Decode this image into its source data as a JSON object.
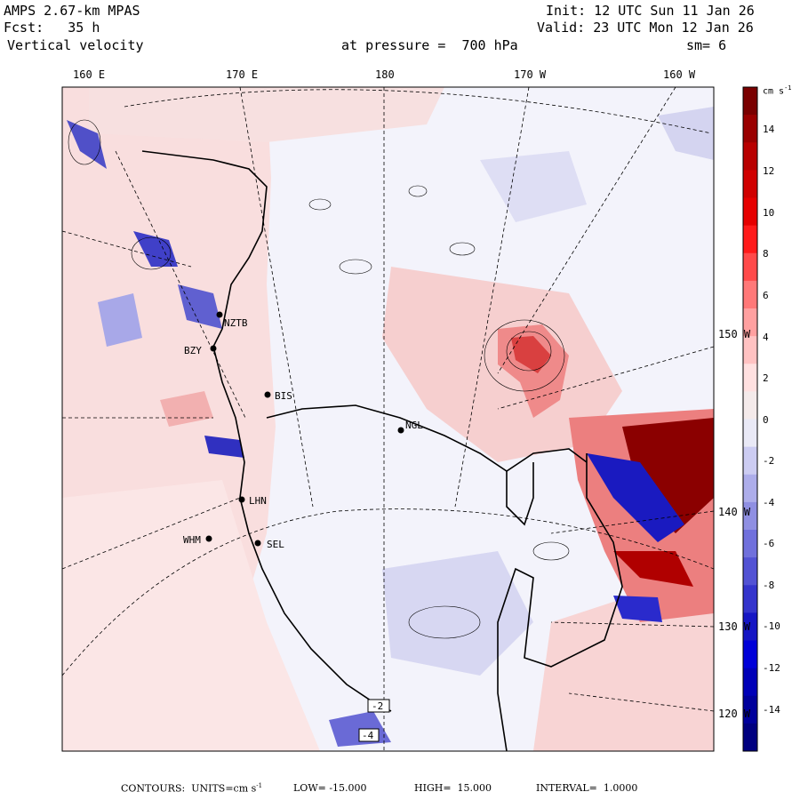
{
  "header": {
    "model": "AMPS 2.67-km MPAS",
    "init": "Init: 12 UTC Sun 11 Jan 26",
    "fcst": "Fcst:   35 h",
    "valid": "Valid: 23 UTC Mon 12 Jan 26",
    "field": "Vertical velocity",
    "pressure": "at pressure =  700 hPa",
    "smoothing": "sm= 6"
  },
  "longitude_labels": [
    "160 E",
    "170 E",
    "180",
    "170 W",
    "160 W"
  ],
  "latitude_labels": [
    "150 W",
    "140 W",
    "130 W",
    "120 W"
  ],
  "colorbar": {
    "units": "cm s",
    "units_exp": "-1",
    "ticks": [
      "14",
      "12",
      "10",
      "8",
      "6",
      "4",
      "2",
      "0",
      "-2",
      "-4",
      "-6",
      "-8",
      "-10",
      "-12",
      "-14"
    ],
    "colors": [
      "#7a0000",
      "#9a0000",
      "#b80000",
      "#d00000",
      "#e60000",
      "#ff1a1a",
      "#ff4a4a",
      "#ff7878",
      "#ffa0a0",
      "#ffc2c2",
      "#ffe0e0",
      "#f4eaea",
      "#e9e9f6",
      "#ccccf2",
      "#adadea",
      "#8f8fe2",
      "#7070dc",
      "#5252d4",
      "#3434cc",
      "#1616c4",
      "#0000d8",
      "#0000b8",
      "#00009c",
      "#000080"
    ]
  },
  "stations": [
    {
      "id": "NZTB",
      "label": "NZTB"
    },
    {
      "id": "BZY",
      "label": "BZY"
    },
    {
      "id": "BIS",
      "label": "BIS"
    },
    {
      "id": "NGL",
      "label": "NGL"
    },
    {
      "id": "LHN",
      "label": "LHN"
    },
    {
      "id": "WHM",
      "label": "WHM"
    },
    {
      "id": "SEL",
      "label": "SEL"
    }
  ],
  "boxed_labels": [
    "-2",
    "-4"
  ],
  "footer": {
    "contours": "CONTOURS:  UNITS=cm s",
    "units_exp": "-1",
    "low": "LOW= -15.000",
    "high": "HIGH=  15.000",
    "interval": "INTERVAL=  1.0000"
  }
}
